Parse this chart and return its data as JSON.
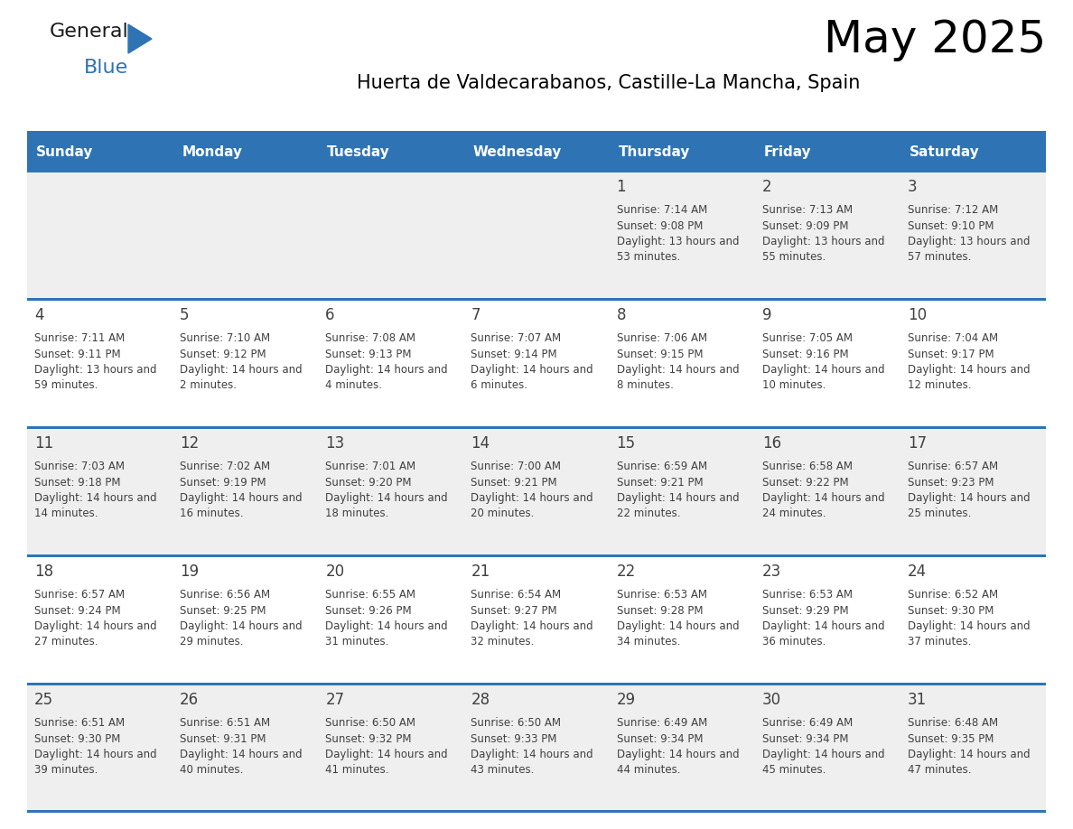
{
  "title": "May 2025",
  "subtitle": "Huerta de Valdecarabanos, Castille-La Mancha, Spain",
  "days_of_week": [
    "Sunday",
    "Monday",
    "Tuesday",
    "Wednesday",
    "Thursday",
    "Friday",
    "Saturday"
  ],
  "header_bg": "#2E74B5",
  "header_text": "#FFFFFF",
  "row_bg_even": "#EFEFEF",
  "row_bg_odd": "#FFFFFF",
  "divider_color": "#2E74B5",
  "text_color": "#404040",
  "calendar_data": [
    [
      null,
      null,
      null,
      null,
      {
        "day": 1,
        "sunrise": "7:14 AM",
        "sunset": "9:08 PM",
        "daylight": "13 hours and 53 minutes"
      },
      {
        "day": 2,
        "sunrise": "7:13 AM",
        "sunset": "9:09 PM",
        "daylight": "13 hours and 55 minutes"
      },
      {
        "day": 3,
        "sunrise": "7:12 AM",
        "sunset": "9:10 PM",
        "daylight": "13 hours and 57 minutes"
      }
    ],
    [
      {
        "day": 4,
        "sunrise": "7:11 AM",
        "sunset": "9:11 PM",
        "daylight": "13 hours and 59 minutes"
      },
      {
        "day": 5,
        "sunrise": "7:10 AM",
        "sunset": "9:12 PM",
        "daylight": "14 hours and 2 minutes"
      },
      {
        "day": 6,
        "sunrise": "7:08 AM",
        "sunset": "9:13 PM",
        "daylight": "14 hours and 4 minutes"
      },
      {
        "day": 7,
        "sunrise": "7:07 AM",
        "sunset": "9:14 PM",
        "daylight": "14 hours and 6 minutes"
      },
      {
        "day": 8,
        "sunrise": "7:06 AM",
        "sunset": "9:15 PM",
        "daylight": "14 hours and 8 minutes"
      },
      {
        "day": 9,
        "sunrise": "7:05 AM",
        "sunset": "9:16 PM",
        "daylight": "14 hours and 10 minutes"
      },
      {
        "day": 10,
        "sunrise": "7:04 AM",
        "sunset": "9:17 PM",
        "daylight": "14 hours and 12 minutes"
      }
    ],
    [
      {
        "day": 11,
        "sunrise": "7:03 AM",
        "sunset": "9:18 PM",
        "daylight": "14 hours and 14 minutes"
      },
      {
        "day": 12,
        "sunrise": "7:02 AM",
        "sunset": "9:19 PM",
        "daylight": "14 hours and 16 minutes"
      },
      {
        "day": 13,
        "sunrise": "7:01 AM",
        "sunset": "9:20 PM",
        "daylight": "14 hours and 18 minutes"
      },
      {
        "day": 14,
        "sunrise": "7:00 AM",
        "sunset": "9:21 PM",
        "daylight": "14 hours and 20 minutes"
      },
      {
        "day": 15,
        "sunrise": "6:59 AM",
        "sunset": "9:21 PM",
        "daylight": "14 hours and 22 minutes"
      },
      {
        "day": 16,
        "sunrise": "6:58 AM",
        "sunset": "9:22 PM",
        "daylight": "14 hours and 24 minutes"
      },
      {
        "day": 17,
        "sunrise": "6:57 AM",
        "sunset": "9:23 PM",
        "daylight": "14 hours and 25 minutes"
      }
    ],
    [
      {
        "day": 18,
        "sunrise": "6:57 AM",
        "sunset": "9:24 PM",
        "daylight": "14 hours and 27 minutes"
      },
      {
        "day": 19,
        "sunrise": "6:56 AM",
        "sunset": "9:25 PM",
        "daylight": "14 hours and 29 minutes"
      },
      {
        "day": 20,
        "sunrise": "6:55 AM",
        "sunset": "9:26 PM",
        "daylight": "14 hours and 31 minutes"
      },
      {
        "day": 21,
        "sunrise": "6:54 AM",
        "sunset": "9:27 PM",
        "daylight": "14 hours and 32 minutes"
      },
      {
        "day": 22,
        "sunrise": "6:53 AM",
        "sunset": "9:28 PM",
        "daylight": "14 hours and 34 minutes"
      },
      {
        "day": 23,
        "sunrise": "6:53 AM",
        "sunset": "9:29 PM",
        "daylight": "14 hours and 36 minutes"
      },
      {
        "day": 24,
        "sunrise": "6:52 AM",
        "sunset": "9:30 PM",
        "daylight": "14 hours and 37 minutes"
      }
    ],
    [
      {
        "day": 25,
        "sunrise": "6:51 AM",
        "sunset": "9:30 PM",
        "daylight": "14 hours and 39 minutes"
      },
      {
        "day": 26,
        "sunrise": "6:51 AM",
        "sunset": "9:31 PM",
        "daylight": "14 hours and 40 minutes"
      },
      {
        "day": 27,
        "sunrise": "6:50 AM",
        "sunset": "9:32 PM",
        "daylight": "14 hours and 41 minutes"
      },
      {
        "day": 28,
        "sunrise": "6:50 AM",
        "sunset": "9:33 PM",
        "daylight": "14 hours and 43 minutes"
      },
      {
        "day": 29,
        "sunrise": "6:49 AM",
        "sunset": "9:34 PM",
        "daylight": "14 hours and 44 minutes"
      },
      {
        "day": 30,
        "sunrise": "6:49 AM",
        "sunset": "9:34 PM",
        "daylight": "14 hours and 45 minutes"
      },
      {
        "day": 31,
        "sunrise": "6:48 AM",
        "sunset": "9:35 PM",
        "daylight": "14 hours and 47 minutes"
      }
    ]
  ]
}
